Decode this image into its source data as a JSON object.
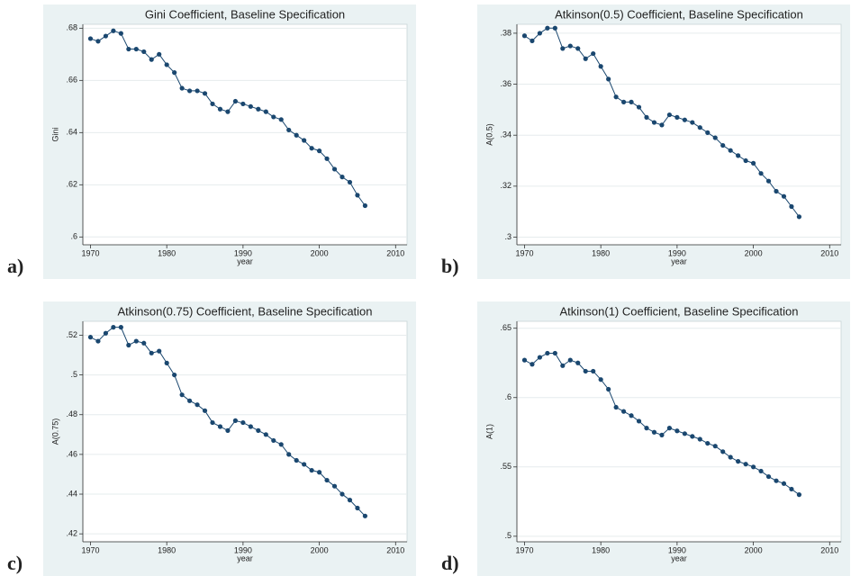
{
  "chart_data": [
    {
      "type": "line",
      "panel_label": "a)",
      "title": "Gini Coefficient, Baseline Specification",
      "x_label": "year",
      "y_label": "Gini",
      "color": "#1a476f",
      "x": [
        1970,
        1971,
        1972,
        1973,
        1974,
        1975,
        1976,
        1977,
        1978,
        1979,
        1980,
        1981,
        1982,
        1983,
        1984,
        1985,
        1986,
        1987,
        1988,
        1989,
        1990,
        1991,
        1992,
        1993,
        1994,
        1995,
        1996,
        1997,
        1998,
        1999,
        2000,
        2001,
        2002,
        2003,
        2004,
        2005,
        2006
      ],
      "values": [
        0.676,
        0.675,
        0.677,
        0.679,
        0.678,
        0.672,
        0.672,
        0.671,
        0.668,
        0.67,
        0.666,
        0.663,
        0.657,
        0.656,
        0.656,
        0.655,
        0.651,
        0.649,
        0.648,
        0.652,
        0.651,
        0.65,
        0.649,
        0.648,
        0.646,
        0.645,
        0.641,
        0.639,
        0.637,
        0.634,
        0.633,
        0.63,
        0.626,
        0.623,
        0.621,
        0.616,
        0.612
      ],
      "xlim": [
        1969,
        2011.5
      ],
      "xticks": [
        1970,
        1980,
        1990,
        2000,
        2010
      ],
      "ylim": [
        0.597,
        0.6815
      ],
      "yticks": [
        {
          "value": 0.6,
          "label": ".6"
        },
        {
          "value": 0.62,
          "label": ".62"
        },
        {
          "value": 0.64,
          "label": ".64"
        },
        {
          "value": 0.66,
          "label": ".66"
        },
        {
          "value": 0.68,
          "label": ".68"
        }
      ],
      "grid": true
    },
    {
      "type": "line",
      "panel_label": "b)",
      "title": "Atkinson(0.5) Coefficient, Baseline Specification",
      "x_label": "year",
      "y_label": "A(0.5)",
      "color": "#1a476f",
      "x": [
        1970,
        1971,
        1972,
        1973,
        1974,
        1975,
        1976,
        1977,
        1978,
        1979,
        1980,
        1981,
        1982,
        1983,
        1984,
        1985,
        1986,
        1987,
        1988,
        1989,
        1990,
        1991,
        1992,
        1993,
        1994,
        1995,
        1996,
        1997,
        1998,
        1999,
        2000,
        2001,
        2002,
        2003,
        2004,
        2005,
        2006
      ],
      "values": [
        0.379,
        0.377,
        0.38,
        0.382,
        0.382,
        0.374,
        0.375,
        0.374,
        0.37,
        0.372,
        0.367,
        0.362,
        0.355,
        0.353,
        0.353,
        0.351,
        0.347,
        0.345,
        0.344,
        0.348,
        0.347,
        0.346,
        0.345,
        0.343,
        0.341,
        0.339,
        0.336,
        0.334,
        0.332,
        0.33,
        0.329,
        0.325,
        0.322,
        0.318,
        0.316,
        0.312,
        0.308
      ],
      "xlim": [
        1969,
        2011.5
      ],
      "xticks": [
        1970,
        1980,
        1990,
        2000,
        2010
      ],
      "ylim": [
        0.297,
        0.3835
      ],
      "yticks": [
        {
          "value": 0.3,
          "label": ".3"
        },
        {
          "value": 0.32,
          "label": ".32"
        },
        {
          "value": 0.34,
          "label": ".34"
        },
        {
          "value": 0.36,
          "label": ".36"
        },
        {
          "value": 0.38,
          "label": ".38"
        }
      ],
      "grid": true
    },
    {
      "type": "line",
      "panel_label": "c)",
      "title": "Atkinson(0.75) Coefficient, Baseline Specification",
      "x_label": "year",
      "y_label": "A(0.75)",
      "color": "#1a476f",
      "x": [
        1970,
        1971,
        1972,
        1973,
        1974,
        1975,
        1976,
        1977,
        1978,
        1979,
        1980,
        1981,
        1982,
        1983,
        1984,
        1985,
        1986,
        1987,
        1988,
        1989,
        1990,
        1991,
        1992,
        1993,
        1994,
        1995,
        1996,
        1997,
        1998,
        1999,
        2000,
        2001,
        2002,
        2003,
        2004,
        2005,
        2006
      ],
      "values": [
        0.519,
        0.517,
        0.521,
        0.524,
        0.524,
        0.515,
        0.517,
        0.516,
        0.511,
        0.512,
        0.506,
        0.5,
        0.49,
        0.487,
        0.485,
        0.482,
        0.476,
        0.474,
        0.472,
        0.477,
        0.476,
        0.474,
        0.472,
        0.47,
        0.467,
        0.465,
        0.46,
        0.457,
        0.455,
        0.452,
        0.451,
        0.447,
        0.444,
        0.44,
        0.437,
        0.433,
        0.429
      ],
      "xlim": [
        1969,
        2011.5
      ],
      "xticks": [
        1970,
        1980,
        1990,
        2000,
        2010
      ],
      "ylim": [
        0.416,
        0.527
      ],
      "yticks": [
        {
          "value": 0.42,
          "label": ".42"
        },
        {
          "value": 0.44,
          "label": ".44"
        },
        {
          "value": 0.46,
          "label": ".46"
        },
        {
          "value": 0.48,
          "label": ".48"
        },
        {
          "value": 0.5,
          "label": ".5"
        },
        {
          "value": 0.52,
          "label": ".52"
        }
      ],
      "grid": true
    },
    {
      "type": "line",
      "panel_label": "d)",
      "title": "Atkinson(1) Coefficient, Baseline Specification",
      "x_label": "year",
      "y_label": "A(1)",
      "color": "#1a476f",
      "x": [
        1970,
        1971,
        1972,
        1973,
        1974,
        1975,
        1976,
        1977,
        1978,
        1979,
        1980,
        1981,
        1982,
        1983,
        1984,
        1985,
        1986,
        1987,
        1988,
        1989,
        1990,
        1991,
        1992,
        1993,
        1994,
        1995,
        1996,
        1997,
        1998,
        1999,
        2000,
        2001,
        2002,
        2003,
        2004,
        2005,
        2006
      ],
      "values": [
        0.627,
        0.624,
        0.629,
        0.632,
        0.632,
        0.623,
        0.627,
        0.625,
        0.619,
        0.619,
        0.613,
        0.606,
        0.593,
        0.59,
        0.587,
        0.583,
        0.578,
        0.575,
        0.573,
        0.578,
        0.576,
        0.574,
        0.572,
        0.57,
        0.567,
        0.565,
        0.561,
        0.557,
        0.554,
        0.552,
        0.55,
        0.547,
        0.543,
        0.54,
        0.538,
        0.534,
        0.53
      ],
      "xlim": [
        1969,
        2011.5
      ],
      "xticks": [
        1970,
        1980,
        1990,
        2000,
        2010
      ],
      "ylim": [
        0.496,
        0.655
      ],
      "yticks": [
        {
          "value": 0.5,
          "label": ".5"
        },
        {
          "value": 0.55,
          "label": ".55"
        },
        {
          "value": 0.6,
          "label": ".6"
        },
        {
          "value": 0.65,
          "label": ".65"
        }
      ],
      "grid": true
    }
  ]
}
